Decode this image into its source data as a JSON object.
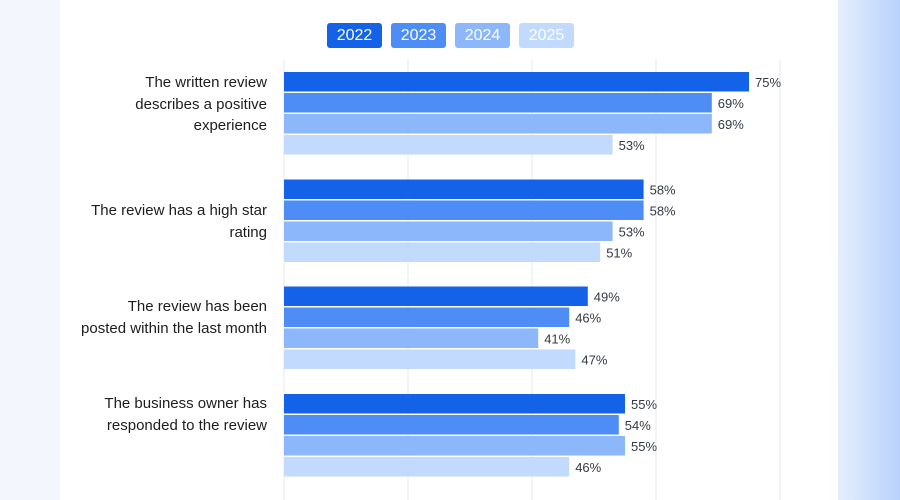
{
  "colors": {
    "series_2022": "#1462e8",
    "series_2023": "#4d8df5",
    "series_2024": "#8cb7fa",
    "series_2025": "#c2dafd",
    "grid": "#e6eaf0",
    "value_text": "#333a44",
    "label_text": "#1d1d1f"
  },
  "legend": {
    "items": [
      {
        "label": "2022"
      },
      {
        "label": "2023"
      },
      {
        "label": "2024"
      },
      {
        "label": "2025"
      }
    ]
  },
  "chart_data": {
    "type": "bar",
    "orientation": "horizontal",
    "categories": [
      "The written review describes a positive experience",
      "The review has a high star rating",
      "The review has been posted within the last month",
      "The business owner has responded to the review"
    ],
    "series": [
      {
        "name": "2022",
        "values": [
          75,
          58,
          49,
          55
        ]
      },
      {
        "name": "2023",
        "values": [
          69,
          58,
          46,
          54
        ]
      },
      {
        "name": "2024",
        "values": [
          69,
          53,
          41,
          55
        ]
      },
      {
        "name": "2025",
        "values": [
          53,
          51,
          47,
          46
        ]
      }
    ],
    "value_labels": [
      [
        "75%",
        "69%",
        "69%",
        "53%"
      ],
      [
        "58%",
        "58%",
        "53%",
        "51%"
      ],
      [
        "49%",
        "46%",
        "41%",
        "47%"
      ],
      [
        "55%",
        "54%",
        "55%",
        "46%"
      ]
    ],
    "value_suffix": "%",
    "xlim": [
      0,
      100
    ],
    "grid": true,
    "legend_position": "top"
  }
}
